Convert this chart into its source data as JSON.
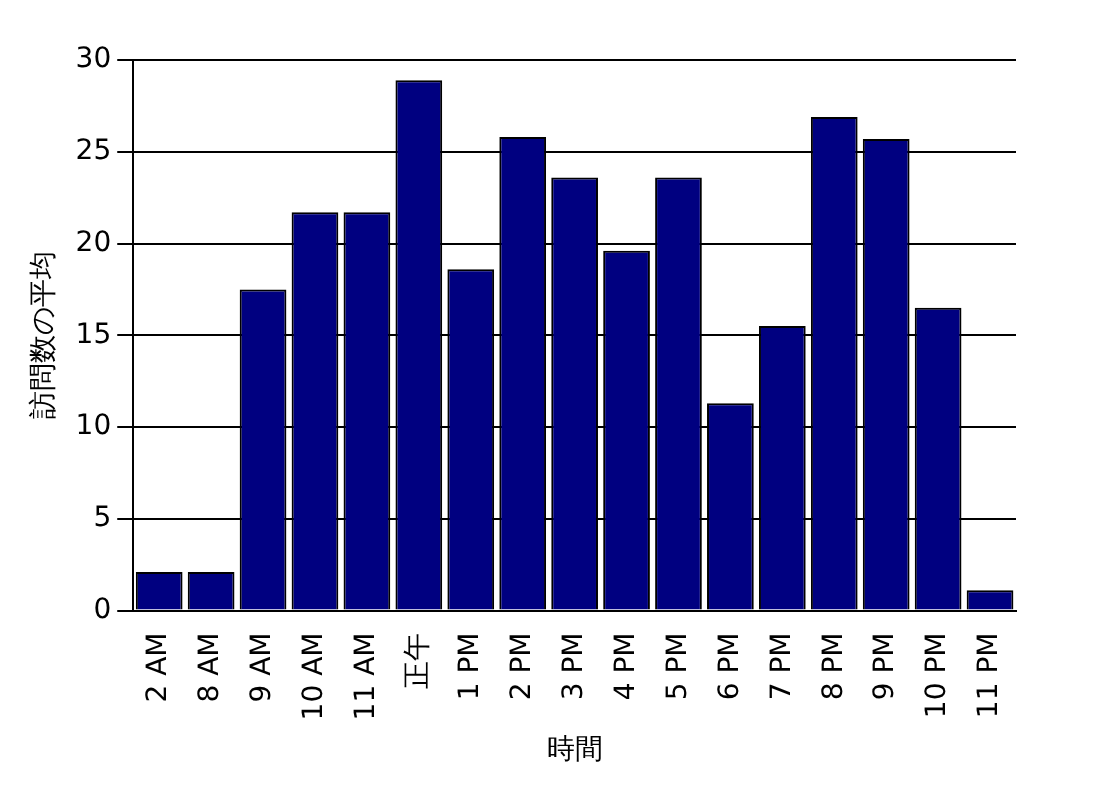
{
  "chart_data": {
    "type": "bar",
    "xlabel": "時間",
    "ylabel": "訪問数の平均",
    "categories": [
      "2 AM",
      "8 AM",
      "9 AM",
      "10 AM",
      "11 AM",
      "正午",
      "1 PM",
      "2 PM",
      "3 PM",
      "4 PM",
      "5 PM",
      "6 PM",
      "7 PM",
      "8 PM",
      "9 PM",
      "10 PM",
      "11 PM"
    ],
    "values": [
      2.1,
      2.1,
      17.5,
      21.7,
      21.7,
      28.9,
      18.6,
      25.8,
      23.6,
      19.6,
      23.6,
      11.3,
      15.5,
      26.9,
      25.7,
      16.5,
      1.1
    ],
    "color": "#000080",
    "ylim": [
      0,
      30
    ],
    "yticks": [
      0,
      5,
      10,
      15,
      20,
      25,
      30
    ],
    "grid": "y",
    "legend": false
  }
}
